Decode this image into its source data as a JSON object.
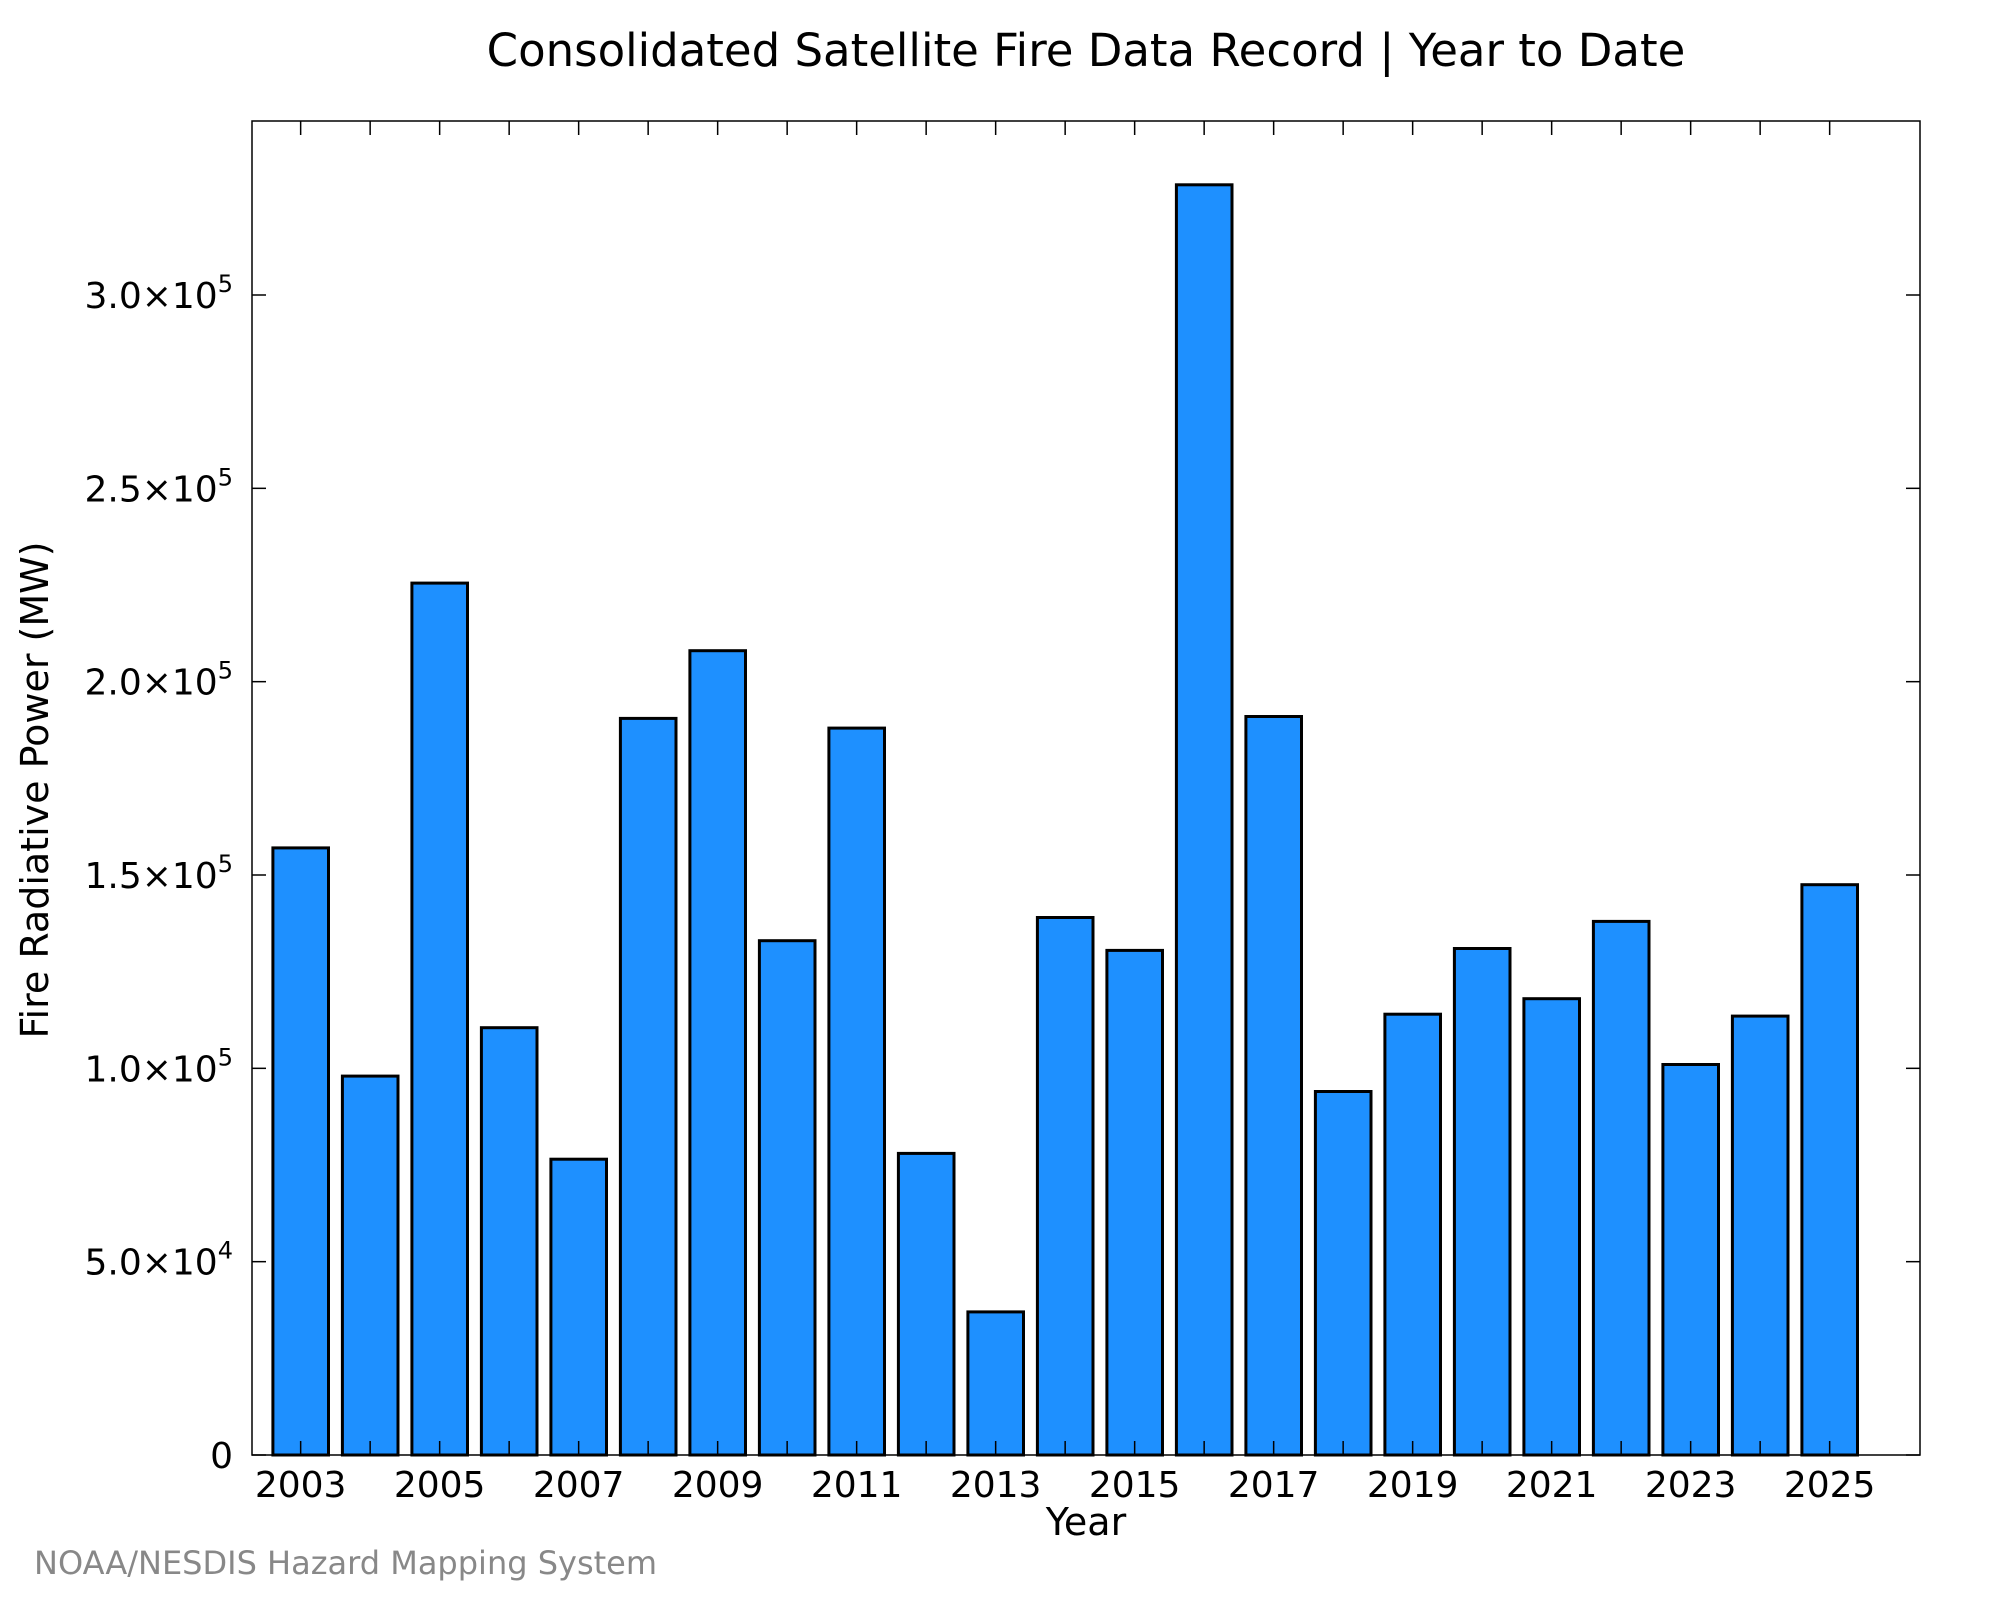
{
  "chart_data": {
    "type": "bar",
    "title": "Consolidated Satellite Fire Data Record | Year to Date",
    "xlabel": "Year",
    "ylabel": "Fire Radiative Power (MW)",
    "categories": [
      "2003",
      "2004",
      "2005",
      "2006",
      "2007",
      "2008",
      "2009",
      "2010",
      "2011",
      "2012",
      "2013",
      "2014",
      "2015",
      "2016",
      "2017",
      "2018",
      "2019",
      "2020",
      "2021",
      "2022",
      "2023",
      "2024",
      "2025"
    ],
    "values": [
      157000,
      98000,
      225500,
      110500,
      76500,
      190500,
      208000,
      133000,
      188000,
      78000,
      37000,
      139000,
      130500,
      328500,
      191000,
      94000,
      114000,
      131000,
      118000,
      138000,
      101000,
      113500,
      147500
    ],
    "xticks": [
      "2003",
      "2005",
      "2007",
      "2009",
      "2011",
      "2013",
      "2015",
      "2017",
      "2019",
      "2021",
      "2023",
      "2025"
    ],
    "yticks": [
      {
        "value": 0,
        "mantissa": "0",
        "exp": ""
      },
      {
        "value": 50000,
        "mantissa": "5.0×10",
        "exp": "4"
      },
      {
        "value": 100000,
        "mantissa": "1.0×10",
        "exp": "5"
      },
      {
        "value": 150000,
        "mantissa": "1.5×10",
        "exp": "5"
      },
      {
        "value": 200000,
        "mantissa": "2.0×10",
        "exp": "5"
      },
      {
        "value": 250000,
        "mantissa": "2.5×10",
        "exp": "5"
      },
      {
        "value": 300000,
        "mantissa": "3.0×10",
        "exp": "5"
      }
    ],
    "ylim": [
      0,
      345000
    ],
    "xlim": [
      2002.3,
      2026.3
    ],
    "bar_color": "#1e90ff",
    "edge_color": "#000000",
    "grid": false,
    "credit": "NOAA/NESDIS Hazard Mapping System"
  }
}
